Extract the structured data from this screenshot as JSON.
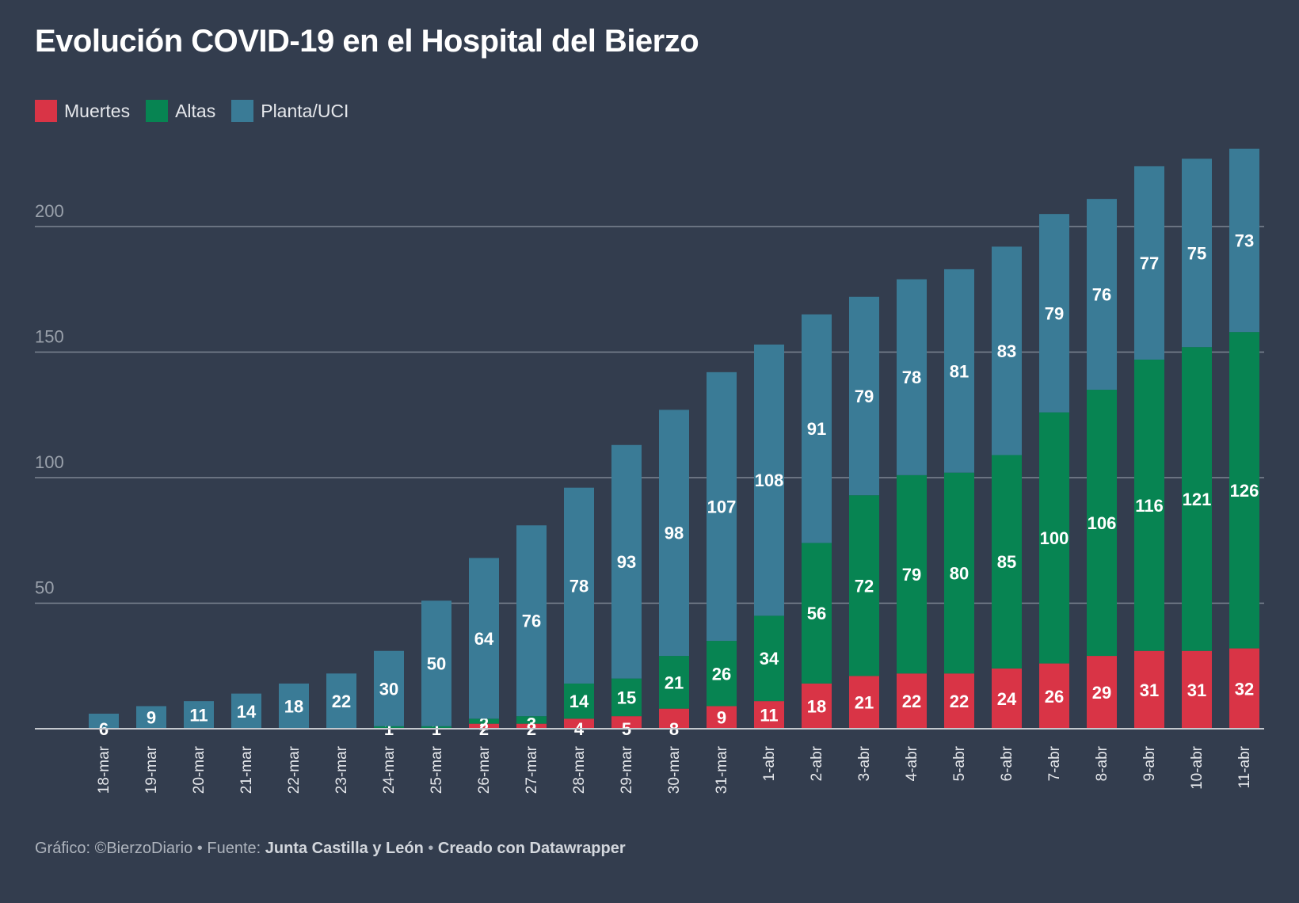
{
  "title": "Evolución COVID-19 en el Hospital del Bierzo",
  "footer": {
    "prefix": "Gráfico: ©BierzoDiario • Fuente: ",
    "source": "Junta Castilla y León",
    "separator": " • ",
    "credit": "Creado con Datawrapper"
  },
  "chart_data": {
    "type": "bar",
    "stacked": true,
    "title": "Evolución COVID-19 en el Hospital del Bierzo",
    "xlabel": "",
    "ylabel": "",
    "ylim": [
      0,
      230
    ],
    "yticks": [
      50,
      100,
      150,
      200
    ],
    "grid": true,
    "legend_position": "top-left",
    "categories": [
      "18-mar",
      "19-mar",
      "20-mar",
      "21-mar",
      "22-mar",
      "23-mar",
      "24-mar",
      "25-mar",
      "26-mar",
      "27-mar",
      "28-mar",
      "29-mar",
      "30-mar",
      "31-mar",
      "1-abr",
      "2-abr",
      "3-abr",
      "4-abr",
      "5-abr",
      "6-abr",
      "7-abr",
      "8-abr",
      "9-abr",
      "10-abr",
      "11-abr"
    ],
    "series": [
      {
        "name": "Muertes",
        "color": "#d93446",
        "values": [
          0,
          0,
          0,
          0,
          0,
          0,
          0,
          0,
          2,
          2,
          4,
          5,
          8,
          9,
          11,
          18,
          21,
          22,
          22,
          24,
          26,
          29,
          31,
          31,
          32
        ]
      },
      {
        "name": "Altas",
        "color": "#078452",
        "values": [
          0,
          0,
          0,
          0,
          0,
          0,
          1,
          1,
          2,
          3,
          14,
          15,
          21,
          26,
          34,
          56,
          72,
          79,
          80,
          85,
          100,
          106,
          116,
          121,
          126
        ]
      },
      {
        "name": "Planta/UCI",
        "color": "#3a7b96",
        "values": [
          6,
          9,
          11,
          14,
          18,
          22,
          30,
          50,
          64,
          76,
          78,
          93,
          98,
          107,
          108,
          91,
          79,
          78,
          81,
          83,
          79,
          76,
          77,
          75,
          73
        ]
      }
    ]
  }
}
